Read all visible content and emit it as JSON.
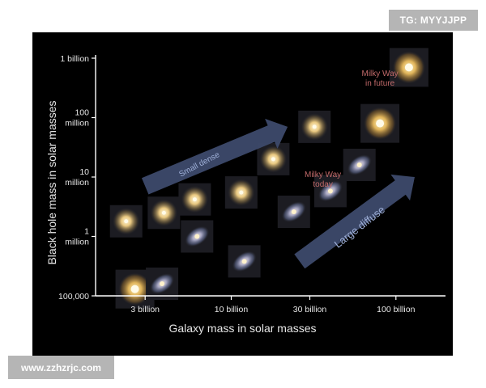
{
  "badges": {
    "tag": "TG: MYYJJPP",
    "site": "www.zzhzrjc.com"
  },
  "colors": {
    "background": "#000000",
    "axis": "#ffffff",
    "text": "#e6e6e6",
    "arrow": "#3d4a6b",
    "arrow_text": "#9fb0d8",
    "annotation": "#c26a6a"
  },
  "chart_data": {
    "type": "scatter",
    "title": "",
    "xlabel": "Galaxy mass in solar masses",
    "ylabel": "Black hole mass in solar masses",
    "x_scale": "log",
    "y_scale": "log",
    "xlim": [
      1500000000,
      200000000000
    ],
    "ylim": [
      100000,
      1000000000
    ],
    "x_ticks": [
      {
        "value": 3000000000,
        "label": "3 billion"
      },
      {
        "value": 10000000000,
        "label": "10 billion"
      },
      {
        "value": 30000000000,
        "label": "30 billion"
      },
      {
        "value": 100000000000,
        "label": "100 billion"
      }
    ],
    "y_ticks": [
      {
        "value": 100000,
        "label": "100,000"
      },
      {
        "value": 1000000,
        "label": "1\nmillion"
      },
      {
        "value": 10000000,
        "label": "10\nmillion"
      },
      {
        "value": 100000000,
        "label": "100\nmillion"
      },
      {
        "value": 1000000000,
        "label": "1 billion"
      }
    ],
    "grid": false,
    "galaxies": [
      {
        "x": 2600000000,
        "y": 130000,
        "kind": "elliptical"
      },
      {
        "x": 3800000000,
        "y": 160000,
        "kind": "spiral"
      },
      {
        "x": 2300000000,
        "y": 1800000,
        "kind": "compact"
      },
      {
        "x": 3900000000,
        "y": 2500000,
        "kind": "compact"
      },
      {
        "x": 6000000000,
        "y": 4200000,
        "kind": "compact"
      },
      {
        "x": 6200000000,
        "y": 1000000,
        "kind": "spiral"
      },
      {
        "x": 11500000000,
        "y": 5500000,
        "kind": "compact"
      },
      {
        "x": 12000000000,
        "y": 380000,
        "kind": "spiral"
      },
      {
        "x": 18000000000,
        "y": 20000000,
        "kind": "compact"
      },
      {
        "x": 24000000000,
        "y": 2600000,
        "kind": "spiral"
      },
      {
        "x": 32000000000,
        "y": 70000000,
        "kind": "compact"
      },
      {
        "x": 40000000000,
        "y": 5800000,
        "kind": "spiral"
      },
      {
        "x": 60000000000,
        "y": 16000000,
        "kind": "spiral"
      },
      {
        "x": 80000000000,
        "y": 80000000,
        "kind": "elliptical"
      },
      {
        "x": 120000000000,
        "y": 700000000,
        "kind": "elliptical"
      }
    ],
    "annotations": [
      {
        "text": "Small  dense",
        "x": 6500000000,
        "y": 15000000,
        "rotate": -28,
        "style": "arrow"
      },
      {
        "text": "Large   diffuse",
        "x": 62000000000,
        "y": 1300000,
        "rotate": -38,
        "style": "arrow"
      },
      {
        "text": "Milky Way\ntoday",
        "x": 36000000000,
        "y": 10000000,
        "rotate": 0,
        "style": "label"
      },
      {
        "text": "Milky Way\nin future",
        "x": 80000000000,
        "y": 500000000,
        "rotate": 0,
        "style": "label"
      }
    ],
    "arrows": [
      {
        "from": [
          3000000000,
          7000000
        ],
        "to": [
          22000000000,
          70000000
        ]
      },
      {
        "from": [
          26000000000,
          380000
        ],
        "to": [
          130000000000,
          10000000
        ]
      }
    ]
  }
}
